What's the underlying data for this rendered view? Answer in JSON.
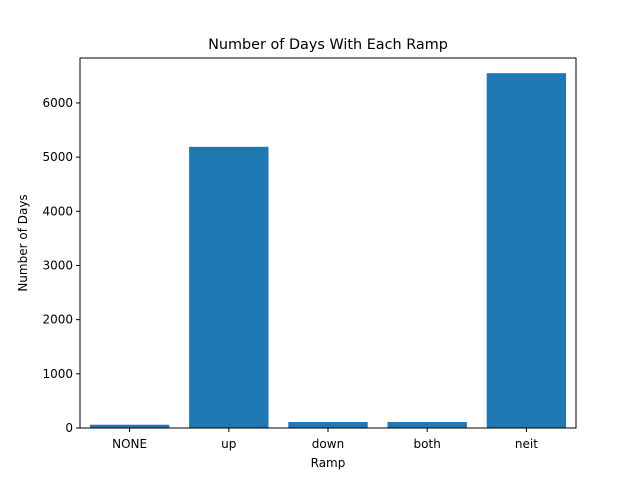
{
  "chart_data": {
    "type": "bar",
    "title": "Number of Days With Each Ramp",
    "xlabel": "Ramp",
    "ylabel": "Number of Days",
    "categories": [
      "NONE",
      "up",
      "down",
      "both",
      "neit"
    ],
    "values": [
      60,
      5190,
      110,
      110,
      6550
    ],
    "ylim": [
      0,
      6830
    ],
    "yticks": [
      0,
      1000,
      2000,
      3000,
      4000,
      5000,
      6000
    ],
    "grid": false,
    "legend": "none",
    "colors": {
      "bar": "#1f77b4",
      "axis": "#000000",
      "background": "#ffffff"
    }
  }
}
